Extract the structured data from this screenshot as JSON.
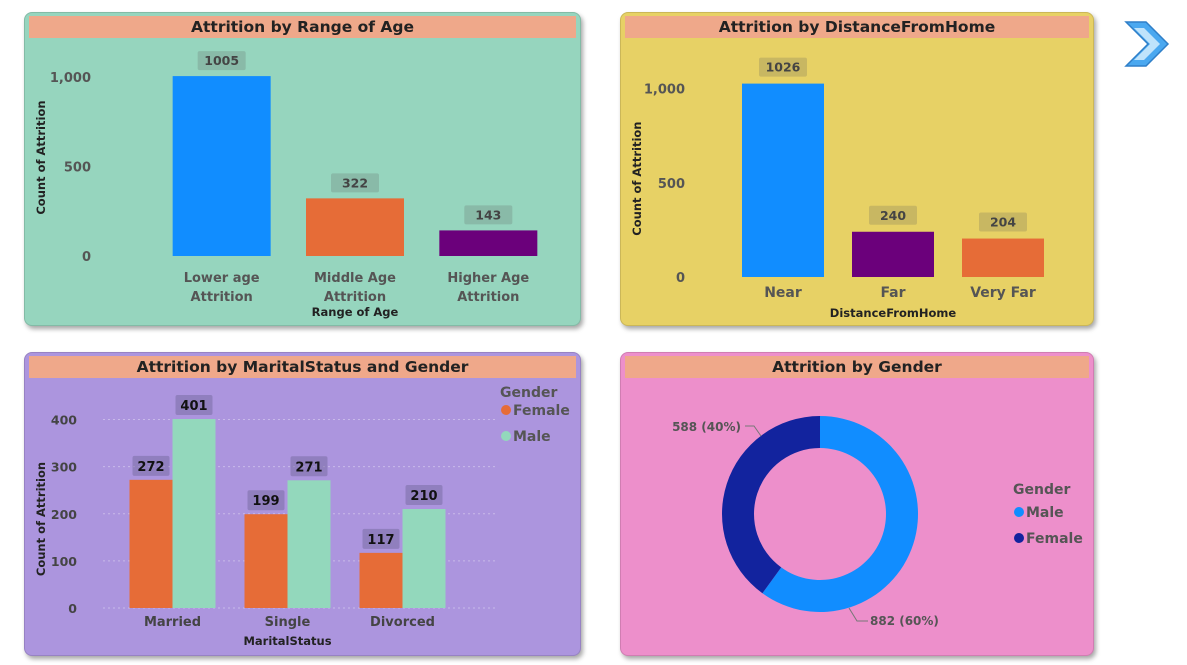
{
  "colors": {
    "panel_age": "#96D5BE",
    "panel_distance": "#E7D165",
    "panel_marital": "#AC95DE",
    "panel_gender": "#ED8FCB",
    "title_bar": "#EFA88A",
    "blue": "#118DFF",
    "orange": "#E66C37",
    "purple": "#6B007B",
    "mint": "#93D8BC",
    "navy": "#12239E",
    "arrow": "#4AA8F0"
  },
  "nav": {
    "icon": "chevron-right-icon"
  },
  "chart_data": [
    {
      "id": "age",
      "type": "bar",
      "title": "Attrition by Range of Age",
      "xlabel": "Range of Age",
      "ylabel": "Count of Attrition",
      "categories": [
        [
          "Lower age",
          "Attrition"
        ],
        [
          "Middle Age",
          "Attrition"
        ],
        [
          "Higher Age",
          "Attrition"
        ]
      ],
      "values": [
        1005,
        322,
        143
      ],
      "value_labels": [
        "1005",
        "322",
        "143"
      ],
      "bar_colors": [
        "#118DFF",
        "#E66C37",
        "#6B007B"
      ],
      "ylim": [
        0,
        1100
      ],
      "yticks": [
        0,
        500,
        1000
      ],
      "ytick_labels": [
        "0",
        "500",
        "1,000"
      ],
      "grid": false
    },
    {
      "id": "distance",
      "type": "bar",
      "title": "Attrition by DistanceFromHome",
      "xlabel": "DistanceFromHome",
      "ylabel": "Count of Attrition",
      "categories": [
        "Near",
        "Far",
        "Very Far"
      ],
      "values": [
        1026,
        240,
        204
      ],
      "value_labels": [
        "1026",
        "240",
        "204"
      ],
      "bar_colors": [
        "#118DFF",
        "#6B007B",
        "#E66C37"
      ],
      "ylim": [
        0,
        1150
      ],
      "yticks": [
        0,
        500,
        1000
      ],
      "ytick_labels": [
        "0",
        "500",
        "1,000"
      ],
      "grid": false
    },
    {
      "id": "marital",
      "type": "bar",
      "title": "Attrition by MaritalStatus and Gender",
      "xlabel": "MaritalStatus",
      "ylabel": "Count of Attrition",
      "categories": [
        "Married",
        "Single",
        "Divorced"
      ],
      "series": [
        {
          "name": "Female",
          "values": [
            272,
            199,
            117
          ],
          "color": "#E66C37"
        },
        {
          "name": "Male",
          "values": [
            401,
            271,
            210
          ],
          "color": "#93D8BC"
        }
      ],
      "legend_title": "Gender",
      "legend_position": "top-right",
      "ylim": [
        0,
        420
      ],
      "yticks": [
        0,
        100,
        200,
        300,
        400
      ],
      "grid": true
    },
    {
      "id": "gender",
      "type": "pie",
      "title": "Attrition by Gender",
      "slices": [
        {
          "name": "Male",
          "value": 882,
          "label": "882 (60%)",
          "color": "#118DFF"
        },
        {
          "name": "Female",
          "value": 588,
          "label": "588 (40%)",
          "color": "#12239E"
        }
      ],
      "legend_title": "Gender",
      "legend_position": "right"
    }
  ]
}
